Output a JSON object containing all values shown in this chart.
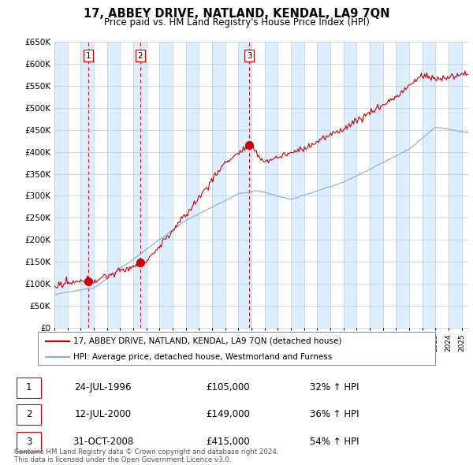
{
  "title": "17, ABBEY DRIVE, NATLAND, KENDAL, LA9 7QN",
  "subtitle": "Price paid vs. HM Land Registry's House Price Index (HPI)",
  "ylabel_ticks": [
    "£0",
    "£50K",
    "£100K",
    "£150K",
    "£200K",
    "£250K",
    "£300K",
    "£350K",
    "£400K",
    "£450K",
    "£500K",
    "£550K",
    "£600K",
    "£650K"
  ],
  "ytick_values": [
    0,
    50000,
    100000,
    150000,
    200000,
    250000,
    300000,
    350000,
    400000,
    450000,
    500000,
    550000,
    600000,
    650000
  ],
  "purchases": [
    {
      "date_num": 1996.56,
      "price": 105000,
      "label": "1"
    },
    {
      "date_num": 2000.53,
      "price": 149000,
      "label": "2"
    },
    {
      "date_num": 2008.83,
      "price": 415000,
      "label": "3"
    }
  ],
  "purchase_color": "#cc0000",
  "hpi_color": "#88aadd",
  "vline_color": "#cc0000",
  "grid_color": "#bbccdd",
  "band_color": "#ddeeff",
  "background_color": "#ffffff",
  "legend_entries": [
    "17, ABBEY DRIVE, NATLAND, KENDAL, LA9 7QN (detached house)",
    "HPI: Average price, detached house, Westmorland and Furness"
  ],
  "table_entries": [
    {
      "label": "1",
      "date": "24-JUL-1996",
      "price": "£105,000",
      "hpi": "32% ↑ HPI"
    },
    {
      "label": "2",
      "date": "12-JUL-2000",
      "price": "£149,000",
      "hpi": "36% ↑ HPI"
    },
    {
      "label": "3",
      "date": "31-OCT-2008",
      "price": "£415,000",
      "hpi": "54% ↑ HPI"
    }
  ],
  "footnote": "Contains HM Land Registry data © Crown copyright and database right 2024.\nThis data is licensed under the Open Government Licence v3.0.",
  "xmin": 1994,
  "xmax": 2025.5,
  "ymin": 0,
  "ymax": 650000
}
